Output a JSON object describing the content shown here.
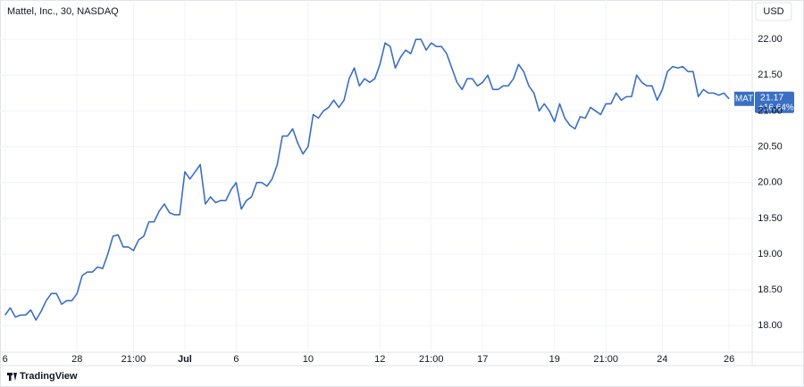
{
  "chart_data": {
    "type": "line",
    "title": "Mattel, Inc., 30, NASDAQ",
    "currency": "USD",
    "brand": "TradingView",
    "symbol": "MAT",
    "last_price_label": "21.17",
    "change_label": "+16.64%",
    "series": [
      {
        "name": "MAT",
        "color": "#3a6fc4",
        "values": [
          18.15,
          18.25,
          18.12,
          18.15,
          18.15,
          18.22,
          18.08,
          18.2,
          18.35,
          18.45,
          18.45,
          18.3,
          18.35,
          18.35,
          18.45,
          18.7,
          18.75,
          18.75,
          18.82,
          18.8,
          19.0,
          19.25,
          19.27,
          19.1,
          19.1,
          19.05,
          19.2,
          19.25,
          19.45,
          19.45,
          19.6,
          19.7,
          19.58,
          19.55,
          19.55,
          20.15,
          20.05,
          20.15,
          20.25,
          19.7,
          19.8,
          19.72,
          19.75,
          19.75,
          19.9,
          20.0,
          19.63,
          19.75,
          19.8,
          20.0,
          20.0,
          19.95,
          20.05,
          20.25,
          20.65,
          20.65,
          20.75,
          20.55,
          20.4,
          20.5,
          20.95,
          20.9,
          21.0,
          21.05,
          21.15,
          21.05,
          21.15,
          21.45,
          21.6,
          21.35,
          21.45,
          21.4,
          21.45,
          21.65,
          21.95,
          21.9,
          21.6,
          21.75,
          21.85,
          21.8,
          22.0,
          22.0,
          21.85,
          21.95,
          21.9,
          21.9,
          21.8,
          21.6,
          21.4,
          21.3,
          21.45,
          21.45,
          21.35,
          21.4,
          21.5,
          21.3,
          21.3,
          21.35,
          21.35,
          21.45,
          21.65,
          21.55,
          21.35,
          21.25,
          21.0,
          21.1,
          21.0,
          20.85,
          21.1,
          20.9,
          20.8,
          20.75,
          20.92,
          20.9,
          21.05,
          21.0,
          20.95,
          21.1,
          21.1,
          21.25,
          21.15,
          21.2,
          21.2,
          21.5,
          21.4,
          21.35,
          21.35,
          21.15,
          21.3,
          21.55,
          21.62,
          21.6,
          21.62,
          21.55,
          21.55,
          21.2,
          21.3,
          21.25,
          21.25,
          21.22,
          21.25,
          21.17
        ]
      }
    ],
    "xlim": [
      -1,
      145.5
    ],
    "xticks": [
      {
        "value": 0,
        "label": "6"
      },
      {
        "value": 14,
        "label": "28"
      },
      {
        "value": 25,
        "label": "21:00"
      },
      {
        "value": 35,
        "label": "Jul"
      },
      {
        "value": 45,
        "label": "6"
      },
      {
        "value": 59,
        "label": "10"
      },
      {
        "value": 73,
        "label": "12"
      },
      {
        "value": 83,
        "label": "21:00"
      },
      {
        "value": 93,
        "label": "17"
      },
      {
        "value": 107,
        "label": "19"
      },
      {
        "value": 117,
        "label": "21:00"
      },
      {
        "value": 128,
        "label": "24"
      },
      {
        "value": 141,
        "label": "26"
      }
    ],
    "ylim": [
      17.63,
      22.55
    ],
    "yticks": [
      {
        "value": 18,
        "label": "18.00"
      },
      {
        "value": 18.5,
        "label": "18.50"
      },
      {
        "value": 19,
        "label": "19.00"
      },
      {
        "value": 19.5,
        "label": "19.50"
      },
      {
        "value": 20,
        "label": "20.00"
      },
      {
        "value": 20.5,
        "label": "20.50"
      },
      {
        "value": 21,
        "label": "21.00"
      },
      {
        "value": 21.5,
        "label": "21.50"
      },
      {
        "value": 22,
        "label": "22.00"
      }
    ],
    "grid": true
  }
}
